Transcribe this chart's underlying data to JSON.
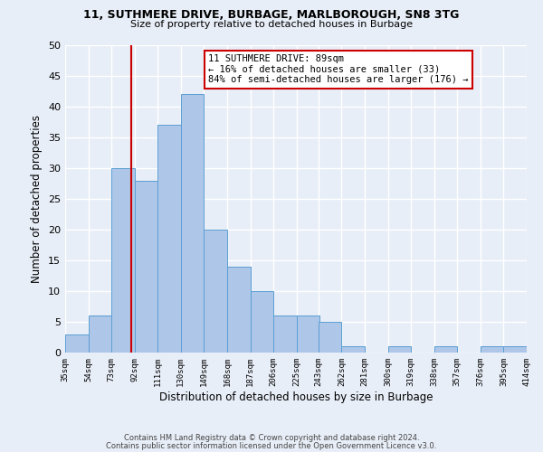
{
  "title1": "11, SUTHMERE DRIVE, BURBAGE, MARLBOROUGH, SN8 3TG",
  "title2": "Size of property relative to detached houses in Burbage",
  "xlabel": "Distribution of detached houses by size in Burbage",
  "ylabel": "Number of detached properties",
  "bin_edges": [
    35,
    54,
    73,
    92,
    111,
    130,
    149,
    168,
    187,
    206,
    225,
    243,
    262,
    281,
    300,
    319,
    338,
    357,
    376,
    395,
    414
  ],
  "bin_labels": [
    "35sqm",
    "54sqm",
    "73sqm",
    "92sqm",
    "111sqm",
    "130sqm",
    "149sqm",
    "168sqm",
    "187sqm",
    "206sqm",
    "225sqm",
    "243sqm",
    "262sqm",
    "281sqm",
    "300sqm",
    "319sqm",
    "338sqm",
    "357sqm",
    "376sqm",
    "395sqm",
    "414sqm"
  ],
  "counts": [
    3,
    6,
    30,
    28,
    37,
    42,
    20,
    14,
    10,
    6,
    6,
    5,
    1,
    0,
    1,
    0,
    1,
    0,
    1,
    1
  ],
  "bar_color": "#aec6e8",
  "bar_edge_color": "#5a9fd4",
  "property_line_x": 89,
  "property_line_color": "#cc0000",
  "annotation_line1": "11 SUTHMERE DRIVE: 89sqm",
  "annotation_line2": "← 16% of detached houses are smaller (33)",
  "annotation_line3": "84% of semi-detached houses are larger (176) →",
  "annotation_box_color": "#ffffff",
  "annotation_box_edge": "#cc0000",
  "ylim": [
    0,
    50
  ],
  "yticks": [
    0,
    5,
    10,
    15,
    20,
    25,
    30,
    35,
    40,
    45,
    50
  ],
  "footer1": "Contains HM Land Registry data © Crown copyright and database right 2024.",
  "footer2": "Contains public sector information licensed under the Open Government Licence v3.0.",
  "bg_color": "#e8eef7",
  "grid_color": "#ffffff"
}
